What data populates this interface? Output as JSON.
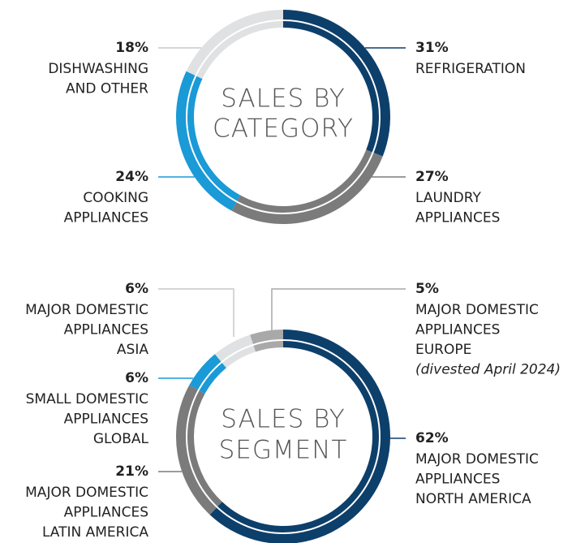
{
  "chart_data": [
    {
      "type": "pie",
      "title": [
        "SALES BY",
        "CATEGORY"
      ],
      "categories": [
        [
          "REFRIGERATION"
        ],
        [
          "LAUNDRY",
          "APPLIANCES"
        ],
        [
          "COOKING",
          "APPLIANCES"
        ],
        [
          "DISHWASHING",
          "AND OTHER"
        ]
      ],
      "values": [
        31,
        27,
        24,
        18
      ],
      "value_labels": [
        "31%",
        "27%",
        "24%",
        "18%"
      ],
      "colors": [
        "#0d3f6b",
        "#7b7b7b",
        "#1a9ad6",
        "#e0e1e3"
      ]
    },
    {
      "type": "pie",
      "title": [
        "SALES BY",
        "SEGMENT"
      ],
      "categories": [
        [
          "MAJOR DOMESTIC",
          "APPLIANCES",
          "NORTH AMERICA"
        ],
        [
          "MAJOR DOMESTIC",
          "APPLIANCES",
          "LATIN AMERICA"
        ],
        [
          "SMALL DOMESTIC",
          "APPLIANCES",
          "GLOBAL"
        ],
        [
          "MAJOR DOMESTIC",
          "APPLIANCES",
          "ASIA"
        ],
        [
          "MAJOR DOMESTIC",
          "APPLIANCES",
          "EUROPE"
        ]
      ],
      "values": [
        62,
        21,
        6,
        6,
        5
      ],
      "value_labels": [
        "62%",
        "21%",
        "6%",
        "6%",
        "5%"
      ],
      "colors": [
        "#0d3f6b",
        "#7b7b7b",
        "#1a9ad6",
        "#e0e1e3",
        "#a9a9a9"
      ],
      "annotations": [
        null,
        null,
        null,
        null,
        "(divested April 2024)"
      ]
    }
  ]
}
